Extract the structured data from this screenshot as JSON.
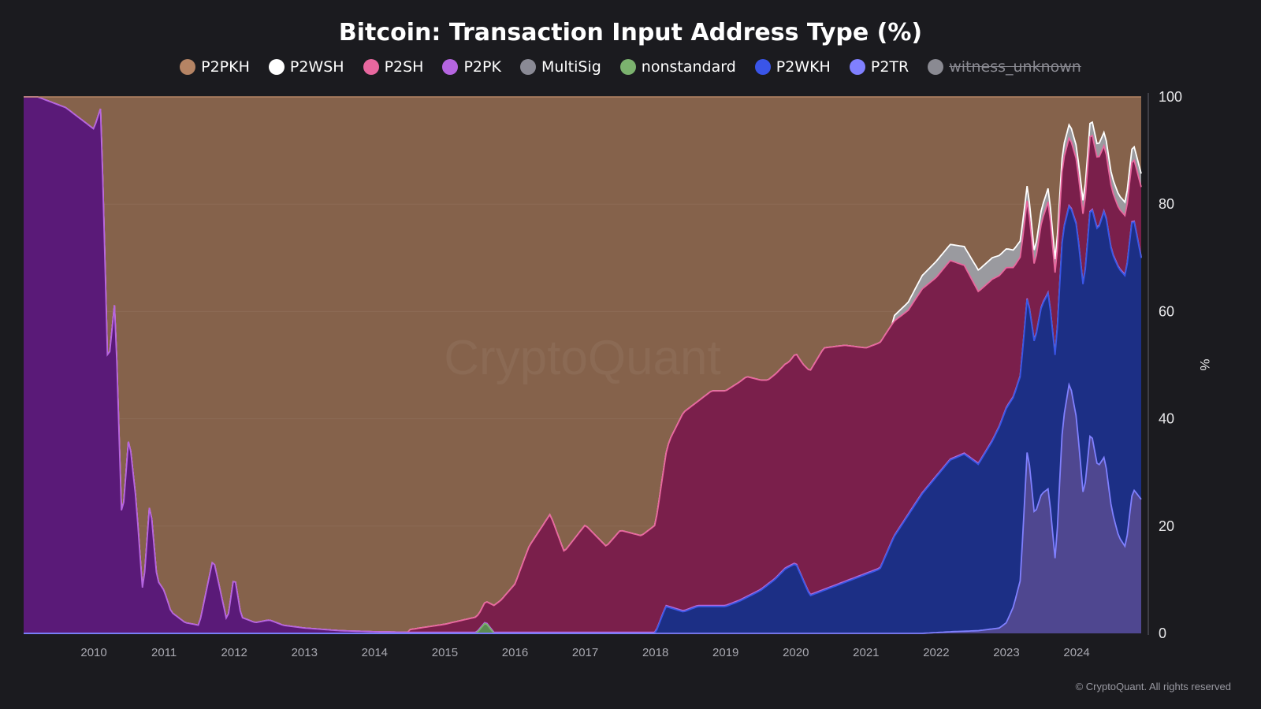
{
  "chart_data": {
    "type": "area",
    "title": "Bitcoin: Transaction Input Address Type (%)",
    "ylabel": "%",
    "ylim": [
      0,
      100
    ],
    "yticks": [
      "0",
      "20",
      "40",
      "60",
      "80",
      "100"
    ],
    "xlim": [
      2009.0,
      2024.92
    ],
    "xticks": [
      "2010",
      "2011",
      "2012",
      "2013",
      "2014",
      "2015",
      "2016",
      "2017",
      "2018",
      "2019",
      "2020",
      "2021",
      "2022",
      "2023",
      "2024"
    ],
    "watermark": "CryptoQuant",
    "legend_position": "top-center",
    "stack_order": [
      "P2TR",
      "P2WKH",
      "nonstandard",
      "MultiSig",
      "P2PK",
      "P2SH",
      "P2WSH",
      "P2PKH"
    ],
    "series": [
      {
        "name": "P2PKH",
        "color": "#b58464",
        "fill": "#85624b",
        "visible": true,
        "note": "fills remainder to 100%"
      },
      {
        "name": "P2WSH",
        "color": "#ffffff",
        "fill": "#9a9a9f",
        "visible": true,
        "x": [
          2021.4,
          2021.6,
          2021.8,
          2022.0,
          2022.2,
          2022.4,
          2022.6,
          2022.8,
          2023.0,
          2023.2,
          2023.4,
          2023.6,
          2023.8,
          2024.0,
          2024.2,
          2024.4,
          2024.6,
          2024.8,
          2024.92
        ],
        "values": [
          1.0,
          1.5,
          2.5,
          3.0,
          3.0,
          3.5,
          4.0,
          4.0,
          3.5,
          3.0,
          2.5,
          2.5,
          2.5,
          2.5,
          2.5,
          2.5,
          2.5,
          2.5,
          2.5
        ]
      },
      {
        "name": "P2SH",
        "color": "#e8679e",
        "fill": "#7a1f4b",
        "visible": true,
        "x": [
          2014.5,
          2015.0,
          2015.5,
          2015.8,
          2016.0,
          2016.2,
          2016.5,
          2016.7,
          2017.0,
          2017.3,
          2017.5,
          2017.8,
          2018.0,
          2018.2,
          2018.4,
          2018.6,
          2018.8,
          2019.0,
          2019.3,
          2019.6,
          2019.9,
          2020.1,
          2020.4,
          2020.7,
          2021.0,
          2021.2,
          2021.4,
          2021.6,
          2021.8,
          2022.0,
          2022.2,
          2022.4,
          2022.6,
          2022.8,
          2023.0,
          2023.2,
          2023.4,
          2023.6,
          2023.8,
          2024.0,
          2024.2,
          2024.4,
          2024.6,
          2024.8,
          2024.92
        ],
        "values": [
          0.5,
          1.5,
          3.0,
          6.0,
          9.0,
          16.0,
          22.0,
          15.0,
          20.0,
          16.0,
          19.0,
          18.0,
          20.0,
          31.0,
          37.0,
          38.0,
          40.0,
          40.0,
          41.0,
          38.0,
          38.0,
          40.0,
          45.0,
          44.0,
          42.0,
          42.0,
          40.0,
          38.0,
          38.0,
          37.0,
          37.0,
          35.0,
          32.0,
          30.0,
          26.0,
          22.0,
          14.0,
          17.0,
          13.0,
          12.0,
          14.0,
          12.0,
          11.0,
          11.0,
          13.0
        ]
      },
      {
        "name": "P2PK",
        "color": "#b565e0",
        "fill": "#5a1a78",
        "visible": true,
        "x": [
          2009.0,
          2009.2,
          2009.4,
          2009.6,
          2009.8,
          2010.0,
          2010.1,
          2010.2,
          2010.3,
          2010.4,
          2010.5,
          2010.6,
          2010.7,
          2010.8,
          2010.9,
          2011.0,
          2011.1,
          2011.2,
          2011.3,
          2011.5,
          2011.7,
          2011.9,
          2012.0,
          2012.1,
          2012.3,
          2012.5,
          2012.7,
          2013.0,
          2013.5,
          2014.0,
          2014.5
        ],
        "values": [
          100.0,
          100.0,
          99.0,
          98.0,
          96.0,
          94.0,
          98.0,
          49.0,
          62.0,
          20.0,
          37.0,
          25.0,
          7.0,
          25.0,
          10.0,
          8.0,
          4.0,
          3.0,
          2.0,
          1.5,
          14.0,
          2.0,
          11.0,
          3.0,
          2.0,
          2.5,
          1.5,
          1.0,
          0.5,
          0.3,
          0.2
        ]
      },
      {
        "name": "MultiSig",
        "color": "#8a8a95",
        "fill": "#707078",
        "visible": true,
        "values_all_near": 0
      },
      {
        "name": "nonstandard",
        "color": "#7bb26e",
        "fill": "#5b8a52",
        "visible": true,
        "x": [
          2015.45,
          2015.58,
          2015.7
        ],
        "values": [
          0.0,
          2.0,
          0.0
        ]
      },
      {
        "name": "P2WKH",
        "color": "#3a55e8",
        "fill": "#1c2f85",
        "visible": true,
        "x": [
          2018.0,
          2018.15,
          2018.4,
          2018.6,
          2018.8,
          2019.0,
          2019.2,
          2019.5,
          2019.7,
          2019.85,
          2020.0,
          2020.2,
          2020.4,
          2020.6,
          2020.8,
          2021.0,
          2021.2,
          2021.4,
          2021.6,
          2021.8,
          2022.0,
          2022.2,
          2022.4,
          2022.6,
          2022.8,
          2023.0,
          2023.2,
          2023.3,
          2023.4,
          2023.5,
          2023.7,
          2023.9,
          2024.0,
          2024.2,
          2024.4,
          2024.6,
          2024.8,
          2024.92
        ],
        "values": [
          0.0,
          5.0,
          4.0,
          5.0,
          5.0,
          5.0,
          6.0,
          8.0,
          10.0,
          12.0,
          13.0,
          7.0,
          8.0,
          9.0,
          10.0,
          11.0,
          12.0,
          18.0,
          22.0,
          26.0,
          29.0,
          32.0,
          33.0,
          31.0,
          35.0,
          40.0,
          38.0,
          28.0,
          32.0,
          35.0,
          38.0,
          33.0,
          36.0,
          42.0,
          46.0,
          50.0,
          51.0,
          45.0
        ]
      },
      {
        "name": "P2TR",
        "color": "#8080ff",
        "fill": "#4f4790",
        "visible": true,
        "x": [
          2021.8,
          2022.2,
          2022.6,
          2022.9,
          2023.0,
          2023.1,
          2023.2,
          2023.3,
          2023.4,
          2023.5,
          2023.6,
          2023.7,
          2023.8,
          2023.9,
          2024.0,
          2024.1,
          2024.2,
          2024.3,
          2024.4,
          2024.5,
          2024.6,
          2024.7,
          2024.8,
          2024.92
        ],
        "values": [
          0.0,
          0.3,
          0.5,
          1.0,
          2.0,
          5.0,
          10.0,
          35.0,
          22.0,
          26.0,
          27.0,
          13.0,
          39.0,
          47.0,
          40.0,
          25.0,
          38.0,
          31.0,
          33.0,
          23.0,
          18.0,
          16.0,
          27.0,
          25.0
        ]
      },
      {
        "name": "witness_unknown",
        "color": "#8a8a92",
        "fill": "#8a8a92",
        "visible": false
      }
    ]
  },
  "copyright": "© CryptoQuant. All rights reserved"
}
